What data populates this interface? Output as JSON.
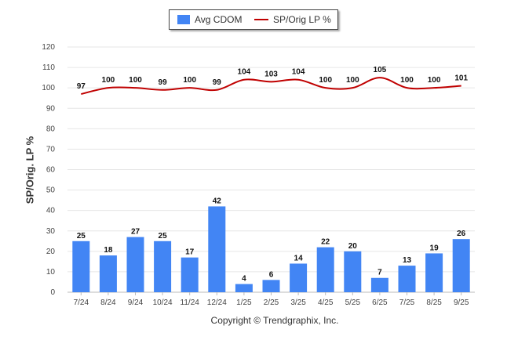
{
  "chart_data": {
    "type": "bar",
    "categories": [
      "7/24",
      "8/24",
      "9/24",
      "10/24",
      "11/24",
      "12/24",
      "1/25",
      "2/25",
      "3/25",
      "4/25",
      "5/25",
      "6/25",
      "7/25",
      "8/25",
      "9/25"
    ],
    "series": [
      {
        "name": "Avg CDOM",
        "type": "bar",
        "color": "#4285f4",
        "values": [
          25,
          18,
          27,
          25,
          17,
          42,
          4,
          6,
          14,
          22,
          20,
          7,
          13,
          19,
          26
        ]
      },
      {
        "name": "SP/Orig LP %",
        "type": "line",
        "color": "#c00000",
        "values": [
          97,
          100,
          100,
          99,
          100,
          99,
          104,
          103,
          104,
          100,
          100,
          105,
          100,
          100,
          101
        ]
      }
    ],
    "ylabel": "SP/Orig. LP %",
    "ylim": [
      0,
      120
    ],
    "yticks": [
      0,
      10,
      20,
      30,
      40,
      50,
      60,
      70,
      80,
      90,
      100,
      110,
      120
    ],
    "grid": true,
    "legend_position": "top-center"
  },
  "footer": {
    "copyright": "Copyright © Trendgraphix, Inc."
  }
}
